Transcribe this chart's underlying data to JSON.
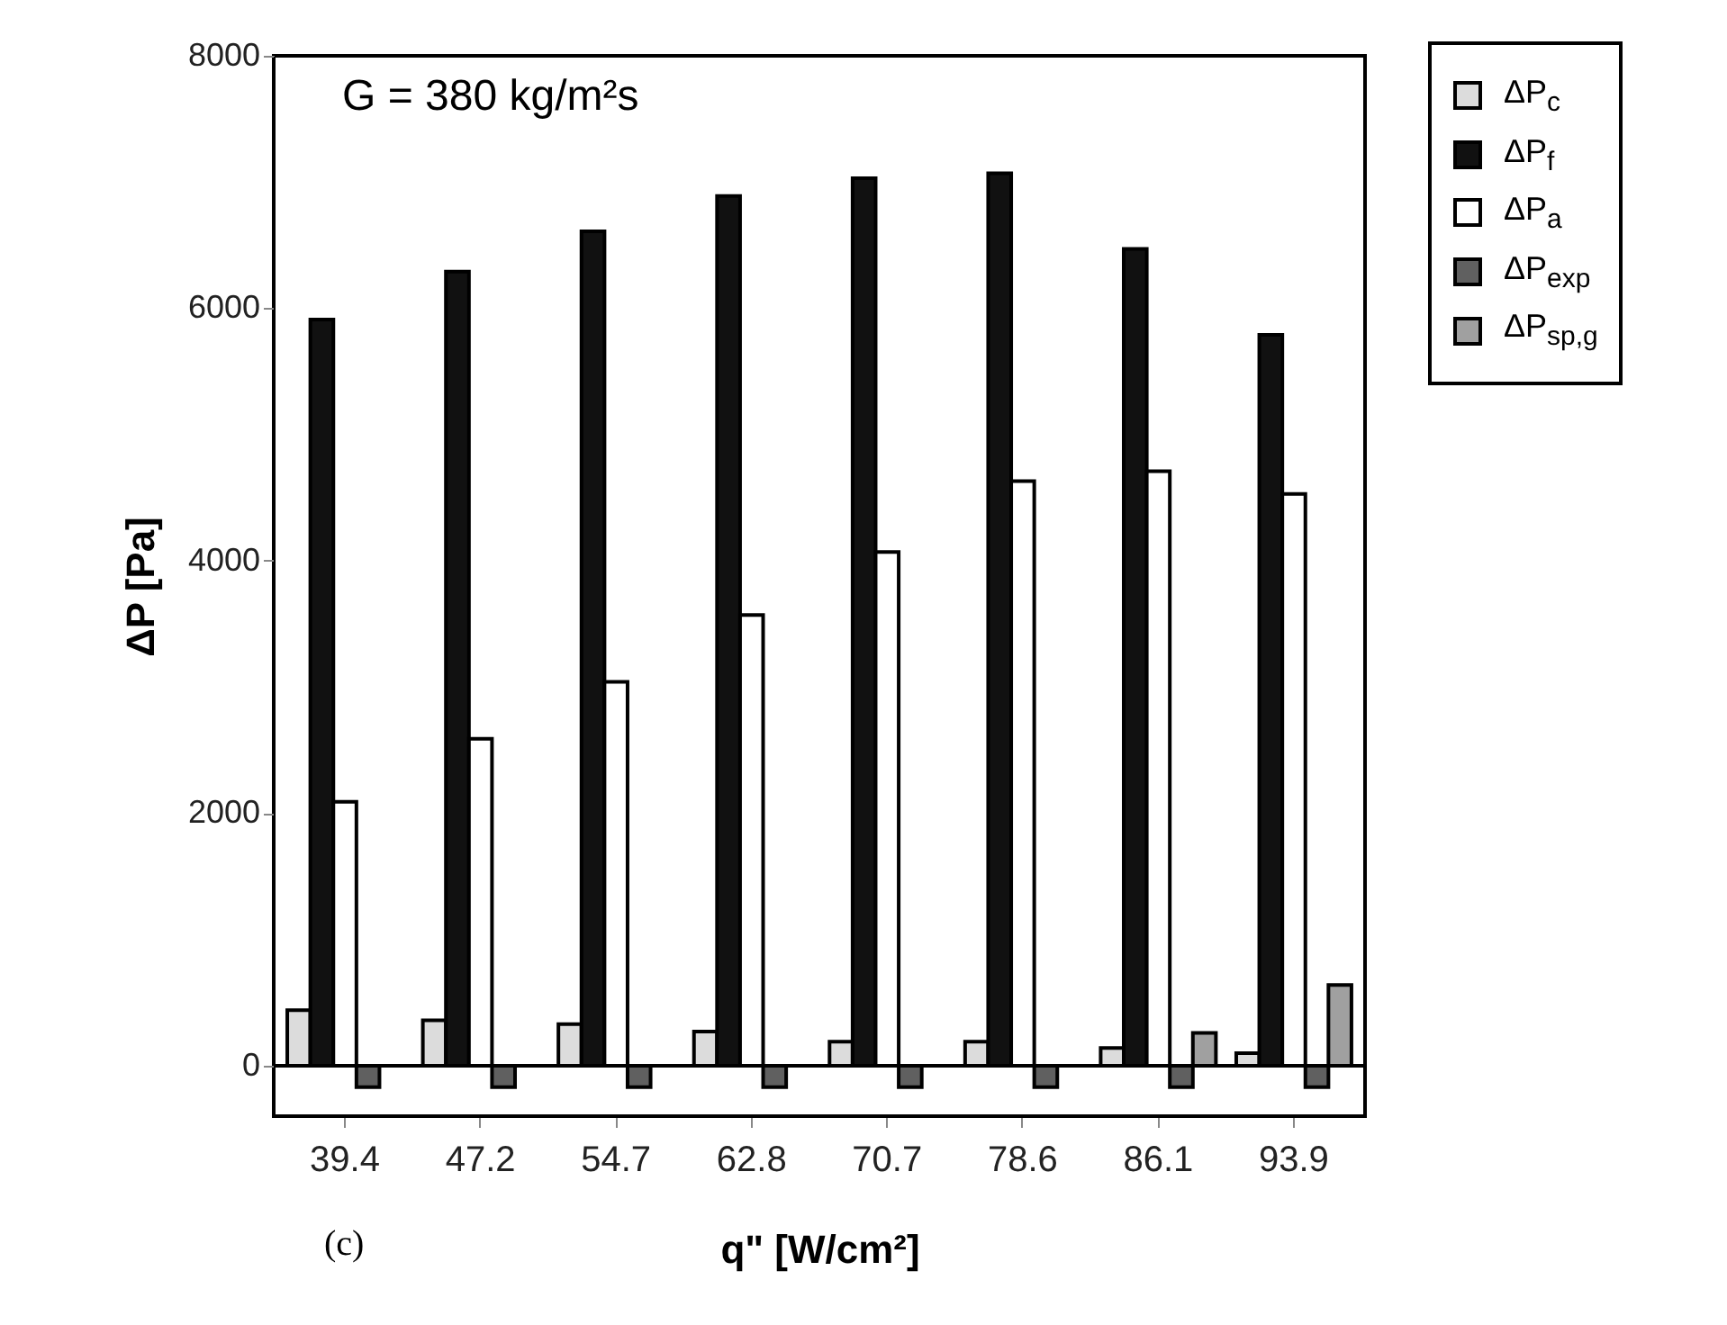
{
  "chart_data": {
    "type": "bar",
    "xlabel": "q\" [W/cm²]",
    "ylabel": "ΔP [Pa]",
    "annotations": [
      "G = 380 kg/m²s",
      "(c)"
    ],
    "categories": [
      "39.4",
      "47.2",
      "54.7",
      "62.8",
      "70.7",
      "78.6",
      "86.1",
      "93.9"
    ],
    "series": [
      {
        "name": "ΔP$_{c}$",
        "color": "#dcdcdc",
        "values": [
          440,
          360,
          330,
          270,
          190,
          190,
          140,
          100
        ]
      },
      {
        "name": "ΔP$_{f}$",
        "color": "#111111",
        "values": [
          5910,
          6290,
          6610,
          6890,
          7030,
          7070,
          6470,
          5790
        ]
      },
      {
        "name": "ΔP$_{a}$",
        "color": "#ffffff",
        "values": [
          2090,
          2590,
          3040,
          3570,
          4070,
          4630,
          4710,
          4530
        ]
      },
      {
        "name": "ΔP$_{exp}$",
        "color": "#606060",
        "values": [
          -170,
          -170,
          -170,
          -170,
          -170,
          -170,
          -170,
          -170
        ]
      },
      {
        "name": "ΔP$_{sp,g}$",
        "color": "#a0a0a0",
        "values": [
          null,
          null,
          null,
          null,
          null,
          null,
          260,
          640
        ]
      }
    ],
    "ylim": [
      -400,
      8000
    ],
    "yticks": [
      0,
      2000,
      4000,
      6000,
      8000
    ],
    "ref_lines": [
      {
        "axis": "y",
        "value": 0,
        "color": "#000000"
      }
    ],
    "legend": "top right",
    "grid": false
  }
}
